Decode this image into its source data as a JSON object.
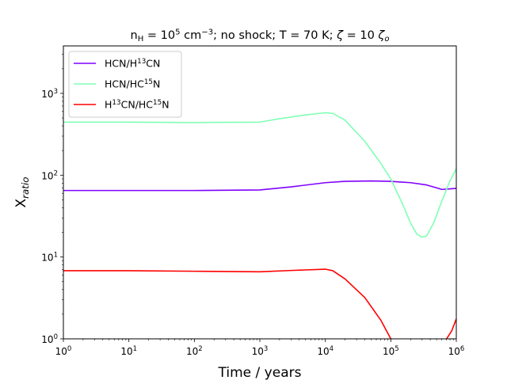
{
  "chart_data": {
    "type": "line",
    "title": {
      "segments": [
        {
          "text": "n"
        },
        {
          "text": "H",
          "style": "sub"
        },
        {
          "text": " = 10"
        },
        {
          "text": "5",
          "style": "sup"
        },
        {
          "text": " cm"
        },
        {
          "text": "−3",
          "style": "sup"
        },
        {
          "text": "; no shock; T = 70 K; "
        },
        {
          "text": "ζ",
          "style": "italic"
        },
        {
          "text": " = 10 "
        },
        {
          "text": "ζ",
          "style": "italic"
        },
        {
          "text": "o",
          "style": "sub-italic"
        }
      ]
    },
    "xlabel": "Time / years",
    "ylabel": {
      "segments": [
        {
          "text": "X"
        },
        {
          "text": "ratio",
          "style": "sub-italic"
        }
      ]
    },
    "xscale": "log",
    "yscale": "log",
    "xlim": [
      1,
      1000000
    ],
    "ylim": [
      1,
      3800
    ],
    "xticks": [
      {
        "value": 1,
        "base": "10",
        "exp": "0"
      },
      {
        "value": 10,
        "base": "10",
        "exp": "1"
      },
      {
        "value": 100,
        "base": "10",
        "exp": "2"
      },
      {
        "value": 1000,
        "base": "10",
        "exp": "3"
      },
      {
        "value": 10000,
        "base": "10",
        "exp": "4"
      },
      {
        "value": 100000,
        "base": "10",
        "exp": "5"
      },
      {
        "value": 1000000,
        "base": "10",
        "exp": "6"
      }
    ],
    "yticks": [
      {
        "value": 1,
        "base": "10",
        "exp": "0"
      },
      {
        "value": 10,
        "base": "10",
        "exp": "1"
      },
      {
        "value": 100,
        "base": "10",
        "exp": "2"
      },
      {
        "value": 1000,
        "base": "10",
        "exp": "3"
      }
    ],
    "legend_position": "top-left",
    "series": [
      {
        "name": {
          "segments": [
            {
              "text": "HCN/H"
            },
            {
              "text": "13",
              "style": "sup"
            },
            {
              "text": "CN"
            }
          ]
        },
        "color": "#7f00ff",
        "x": [
          1,
          10,
          100,
          1000,
          3000,
          10000,
          20000,
          50000,
          100000,
          200000,
          350000,
          500000,
          600000,
          800000,
          1000000
        ],
        "y": [
          65,
          65,
          65,
          66,
          72,
          81,
          84,
          85,
          84,
          81,
          76,
          70,
          67,
          68,
          69
        ]
      },
      {
        "name": {
          "segments": [
            {
              "text": "HCN/HC"
            },
            {
              "text": "15",
              "style": "sup"
            },
            {
              "text": "N"
            }
          ]
        },
        "color": "#80ffb4",
        "x": [
          1,
          10,
          100,
          1000,
          2000,
          5000,
          10000,
          13000,
          20000,
          40000,
          70000,
          100000,
          150000,
          200000,
          250000,
          300000,
          350000,
          450000,
          600000,
          800000,
          1000000
        ],
        "y": [
          445,
          445,
          440,
          445,
          490,
          545,
          580,
          570,
          470,
          260,
          140,
          90,
          45,
          26,
          19,
          17.5,
          18,
          26,
          48,
          85,
          120
        ]
      },
      {
        "name": {
          "segments": [
            {
              "text": "H"
            },
            {
              "text": "13",
              "style": "sup"
            },
            {
              "text": "CN/HC"
            },
            {
              "text": "15",
              "style": "sup"
            },
            {
              "text": "N"
            }
          ]
        },
        "color": "#ff0000",
        "x": [
          1,
          10,
          100,
          1000,
          3000,
          10000,
          13000,
          20000,
          40000,
          70000,
          100000
        ],
        "y": [
          6.8,
          6.8,
          6.7,
          6.6,
          6.85,
          7.1,
          6.8,
          5.4,
          3.2,
          1.7,
          1.0
        ],
        "x2": [
          700000,
          850000,
          1000000
        ],
        "y2": [
          0.98,
          1.25,
          1.75
        ]
      }
    ]
  }
}
